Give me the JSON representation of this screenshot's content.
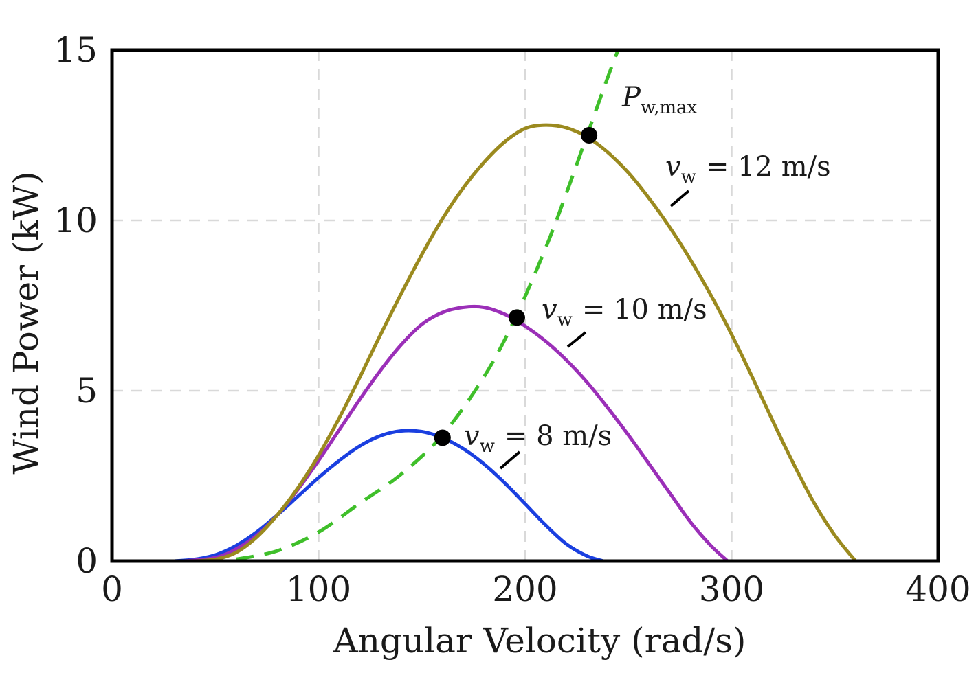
{
  "chart_data": {
    "type": "line",
    "title": "",
    "xlabel": "Angular Velocity (rad/s)",
    "ylabel": "Wind Power (kW)",
    "xlim": [
      0,
      400
    ],
    "ylim": [
      0,
      15
    ],
    "xticks": [
      "0",
      "100",
      "200",
      "300",
      "400"
    ],
    "yticks": [
      "0",
      "5",
      "10",
      "15"
    ],
    "grid": true,
    "series": [
      {
        "name": "v_w = 8 m/s",
        "label_var": "v",
        "label_sub": "w",
        "label_value": "= 8 m/s",
        "color": "#1a3fe0",
        "style": "solid",
        "x": [
          30,
          40,
          50,
          60,
          70,
          80,
          90,
          100,
          110,
          120,
          130,
          140,
          150,
          160,
          170,
          180,
          190,
          200,
          210,
          220,
          230,
          238
        ],
        "y": [
          0.0,
          0.05,
          0.18,
          0.45,
          0.85,
          1.35,
          1.9,
          2.45,
          2.95,
          3.38,
          3.68,
          3.82,
          3.8,
          3.62,
          3.3,
          2.85,
          2.3,
          1.68,
          1.05,
          0.5,
          0.15,
          0.0
        ]
      },
      {
        "name": "v_w = 10 m/s",
        "label_var": "v",
        "label_sub": "w",
        "label_value": "= 10 m/s",
        "color": "#9b2fb8",
        "style": "solid",
        "x": [
          35,
          50,
          60,
          70,
          80,
          90,
          100,
          110,
          120,
          130,
          140,
          150,
          160,
          170,
          180,
          190,
          200,
          210,
          220,
          230,
          240,
          250,
          260,
          270,
          280,
          290,
          298
        ],
        "y": [
          0.0,
          0.1,
          0.35,
          0.75,
          1.35,
          2.1,
          2.95,
          3.85,
          4.75,
          5.6,
          6.35,
          6.95,
          7.3,
          7.45,
          7.45,
          7.25,
          6.9,
          6.45,
          5.9,
          5.25,
          4.5,
          3.7,
          2.85,
          2.0,
          1.15,
          0.45,
          0.0
        ]
      },
      {
        "name": "v_w = 12 m/s",
        "label_var": "v",
        "label_sub": "w",
        "label_value": "= 12 m/s",
        "color": "#9b8a1f",
        "style": "solid",
        "x": [
          40,
          50,
          60,
          70,
          80,
          90,
          100,
          110,
          120,
          130,
          140,
          150,
          160,
          170,
          180,
          190,
          200,
          210,
          220,
          230,
          240,
          250,
          260,
          270,
          280,
          290,
          300,
          310,
          320,
          330,
          340,
          350,
          360
        ],
        "y": [
          0.0,
          0.05,
          0.25,
          0.7,
          1.35,
          2.15,
          3.1,
          4.2,
          5.4,
          6.65,
          7.85,
          9.0,
          10.05,
          10.95,
          11.7,
          12.3,
          12.7,
          12.8,
          12.72,
          12.45,
          12.0,
          11.4,
          10.65,
          9.8,
          8.85,
          7.8,
          6.65,
          5.4,
          4.1,
          2.85,
          1.7,
          0.75,
          0.0
        ]
      },
      {
        "name": "P_w,max",
        "label_var": "P",
        "label_sub": "w,max",
        "label_value": "",
        "color": "#3fbf2a",
        "style": "dashed",
        "x": [
          60,
          80,
          100,
          120,
          140,
          160,
          180,
          195,
          210,
          220,
          230,
          240,
          245
        ],
        "y": [
          0.05,
          0.3,
          0.85,
          1.7,
          2.55,
          3.7,
          5.4,
          7.1,
          9.2,
          10.8,
          12.5,
          14.2,
          15.0
        ]
      }
    ],
    "markers": [
      {
        "x": 160,
        "y": 3.62
      },
      {
        "x": 196,
        "y": 7.15
      },
      {
        "x": 231,
        "y": 12.5
      }
    ]
  }
}
